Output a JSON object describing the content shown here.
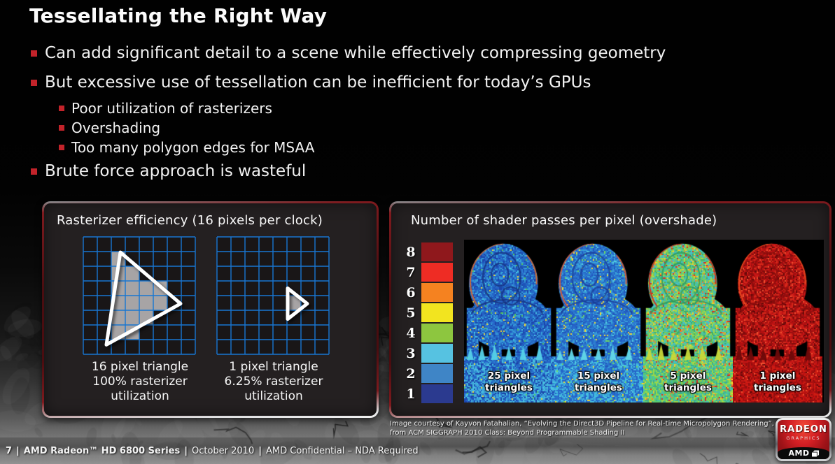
{
  "slide": {
    "title": "Tessellating the Right Way",
    "bullets": [
      {
        "text": "Can add significant detail to a scene while effectively compressing geometry",
        "level": 1
      },
      {
        "text": "But excessive use of tessellation can be inefficient for today’s GPUs",
        "level": 1
      },
      {
        "text": "Poor utilization of rasterizers",
        "level": 2
      },
      {
        "text": "Overshading",
        "level": 2
      },
      {
        "text": "Too many polygon edges for MSAA",
        "level": 2
      },
      {
        "text": "Brute force approach is wasteful",
        "level": 1
      }
    ]
  },
  "left_panel": {
    "title": "Rasterizer efficiency (16 pixels per clock)",
    "diagrams": [
      {
        "caption": [
          "16 pixel triangle",
          "100% rasterizer",
          "utilization"
        ],
        "grid": {
          "cols": 8,
          "rows": 8,
          "shaded": [
            [
              2,
              1
            ],
            [
              2,
              2
            ],
            [
              3,
              2
            ],
            [
              2,
              3
            ],
            [
              3,
              3
            ],
            [
              4,
              3
            ],
            [
              5,
              3
            ],
            [
              2,
              4
            ],
            [
              3,
              4
            ],
            [
              4,
              4
            ],
            [
              5,
              4
            ],
            [
              2,
              5
            ],
            [
              3,
              5
            ],
            [
              4,
              5
            ],
            [
              2,
              6
            ],
            [
              3,
              6
            ]
          ],
          "triangle": [
            [
              2.65,
              1.05
            ],
            [
              6.95,
              4.55
            ],
            [
              1.65,
              7.35
            ]
          ]
        }
      },
      {
        "caption": [
          "1 pixel triangle",
          "6.25% rasterizer",
          "utilization"
        ],
        "grid": {
          "cols": 8,
          "rows": 8,
          "shaded": [
            [
              5,
              4
            ]
          ],
          "triangle": [
            [
              5.05,
              3.5
            ],
            [
              6.45,
              4.55
            ],
            [
              5.05,
              5.6
            ]
          ]
        }
      }
    ]
  },
  "right_panel": {
    "title": "Number of shader passes per pixel (overshade)",
    "scale": [
      {
        "label": "8",
        "color": "#8f181c"
      },
      {
        "label": "7",
        "color": "#ee2c24"
      },
      {
        "label": "6",
        "color": "#f58220"
      },
      {
        "label": "5",
        "color": "#f2e41f"
      },
      {
        "label": "4",
        "color": "#8dc63f"
      },
      {
        "label": "3",
        "color": "#56c2e1"
      },
      {
        "label": "2",
        "color": "#3f85c6"
      },
      {
        "label": "1",
        "color": "#2b3a8f"
      }
    ],
    "images": [
      {
        "label": [
          "25 pixel",
          "triangles"
        ],
        "palette": {
          "base": [
            "#1c44aa",
            "#2563c8",
            "#2e7fd2",
            "#2468c4",
            "#36a2d8",
            "#1d55b8"
          ],
          "speck": [
            "#49c8e8",
            "#57c85e",
            "#f5d832"
          ],
          "prob": 0.05,
          "edge": "#e06828",
          "ring": "#16327e",
          "ground": [
            "#2563c8",
            "#2f85d0",
            "#3fa8da",
            "#1c44aa",
            "#49c0e0"
          ],
          "tree": "#55d2e8"
        }
      },
      {
        "label": [
          "15 pixel",
          "triangles"
        ],
        "palette": {
          "base": [
            "#2158bc",
            "#2a72cc",
            "#38a0d8",
            "#2d7fd0",
            "#2563c8"
          ],
          "speck": [
            "#57d0e0",
            "#6fd862",
            "#f5d832"
          ],
          "prob": 0.09,
          "edge": "#e05a28",
          "ring": "#1a3c96",
          "ground": [
            "#2a72cc",
            "#38a0d8",
            "#45c0e0",
            "#2563c8"
          ],
          "tree": "#62d8e8"
        }
      },
      {
        "label": [
          "5 pixel",
          "triangles"
        ],
        "palette": {
          "base": [
            "#3fae6a",
            "#52c88a",
            "#46c2c8",
            "#7ccc55",
            "#a6d84a",
            "#48b8b0"
          ],
          "speck": [
            "#f5cc2a",
            "#f08030",
            "#d83020"
          ],
          "prob": 0.14,
          "edge": "#d02818",
          "ring": "#2a9a60",
          "ground": [
            "#48c2a8",
            "#58cc70",
            "#9ad848",
            "#40ae8a"
          ],
          "tree": "#c8d838"
        }
      },
      {
        "label": [
          "1 pixel",
          "triangles"
        ],
        "palette": {
          "base": [
            "#b01010",
            "#c81616",
            "#9a1010",
            "#d4281a",
            "#820c0c"
          ],
          "speck": [
            "#f05030",
            "#5e0808"
          ],
          "prob": 0.1,
          "edge": "#e8481f",
          "ring": "#8a0d0d",
          "ground": [
            "#c01212",
            "#a80f0f",
            "#ce1c12",
            "#910e0e"
          ],
          "tree": "#6e0a0a"
        }
      }
    ]
  },
  "caption": {
    "line1": "Image courtesy of Kayvon Fatahalian, “Evolving the Direct3D Pipeline for Real-time Micropolygon Rendering”,",
    "line2": "from ACM SIGGRAPH 2010 Class: Beyond Programmable Shading II"
  },
  "footer": {
    "page": "7",
    "product": "AMD Radeon™ HD 6800 Series",
    "date": "October 2010",
    "confidential": "AMD Confidential – NDA Required",
    "sep": "|"
  },
  "badge": {
    "brand": "RADEON",
    "sub": "GRAPHICS",
    "amd": "AMD"
  },
  "colors": {
    "accent_red": "#c3232a",
    "grid_blue": "#1876d2",
    "grid_bg": "#191617",
    "cell_gray": "#a7a4a5",
    "panel_bg": "#242021",
    "triangle_white": "#ffffff"
  }
}
